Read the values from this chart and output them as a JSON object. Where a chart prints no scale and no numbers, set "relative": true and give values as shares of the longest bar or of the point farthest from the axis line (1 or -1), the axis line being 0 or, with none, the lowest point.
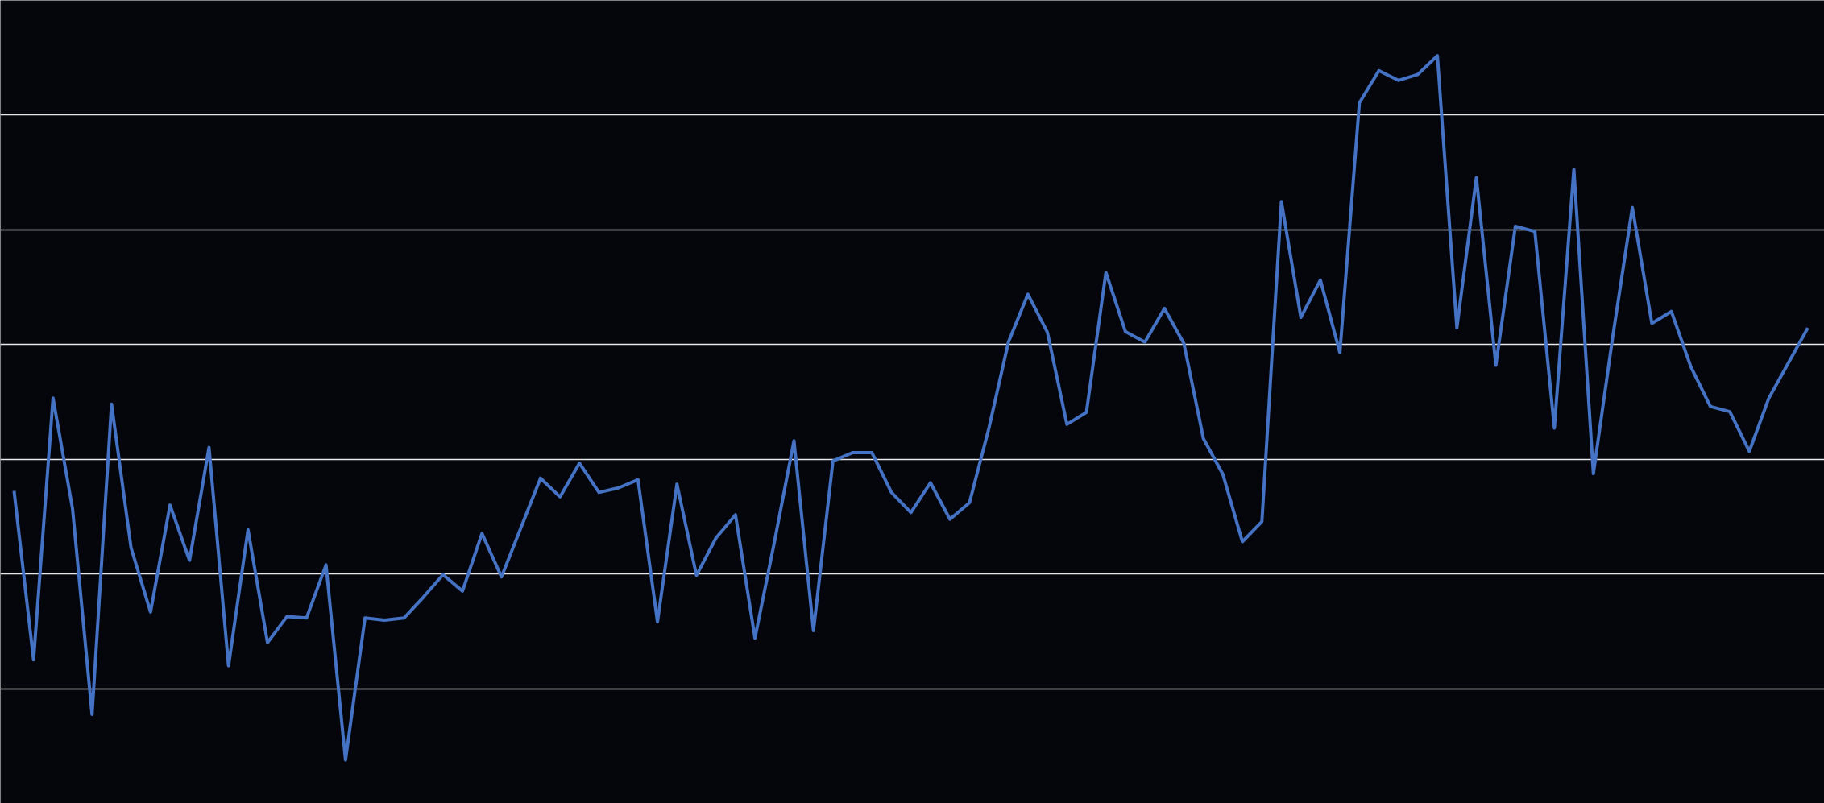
{
  "chart_data": {
    "type": "line",
    "relative": true,
    "grid": "y",
    "marker": "none",
    "line_style": "solid",
    "categories": [
      null,
      null,
      null,
      null,
      null,
      null,
      null,
      null,
      null,
      null,
      null,
      null,
      null,
      null,
      null,
      null,
      null,
      null,
      null,
      null,
      null,
      null,
      null,
      null,
      null,
      null,
      null,
      null,
      null,
      null,
      null,
      null,
      null,
      null,
      null,
      null,
      null,
      null,
      null,
      null,
      null,
      null,
      null,
      null,
      null,
      null,
      null,
      null,
      null,
      null,
      null,
      null,
      null,
      null,
      null,
      null,
      null,
      null,
      null,
      null,
      null,
      null,
      null,
      null,
      null,
      null,
      null,
      null,
      null,
      null,
      null,
      null,
      null,
      null,
      null,
      null,
      null,
      null,
      null,
      null,
      null,
      null,
      null,
      null,
      null,
      null,
      null,
      null,
      null,
      null,
      null,
      null,
      null
    ],
    "series": [
      {
        "color": "#4472c4",
        "values": [
          0.418,
          0.192,
          0.542,
          0.394,
          0.119,
          0.534,
          0.342,
          0.256,
          0.399,
          0.325,
          0.476,
          0.184,
          0.366,
          0.215,
          0.25,
          0.248,
          0.319,
          0.058,
          0.248,
          0.245,
          0.248,
          0.276,
          0.306,
          0.284,
          0.361,
          0.303,
          0.369,
          0.435,
          0.41,
          0.455,
          0.416,
          0.422,
          0.433,
          0.243,
          0.427,
          0.305,
          0.355,
          0.386,
          0.221,
          0.35,
          0.485,
          0.231,
          0.458,
          0.469,
          0.469,
          0.416,
          0.389,
          0.429,
          0.38,
          0.402,
          0.502,
          0.617,
          0.681,
          0.63,
          0.507,
          0.523,
          0.71,
          0.631,
          0.617,
          0.662,
          0.615,
          0.488,
          0.44,
          0.35,
          0.377,
          0.805,
          0.65,
          0.7,
          0.603,
          0.937,
          0.98,
          0.967,
          0.975,
          1,
          0.636,
          0.837,
          0.586,
          0.772,
          0.765,
          0.502,
          0.848,
          0.441,
          0.625,
          0.797,
          0.642,
          0.658,
          0.584,
          0.531,
          0.524,
          0.471,
          0.542,
          0.589,
          0.636
        ]
      }
    ]
  }
}
